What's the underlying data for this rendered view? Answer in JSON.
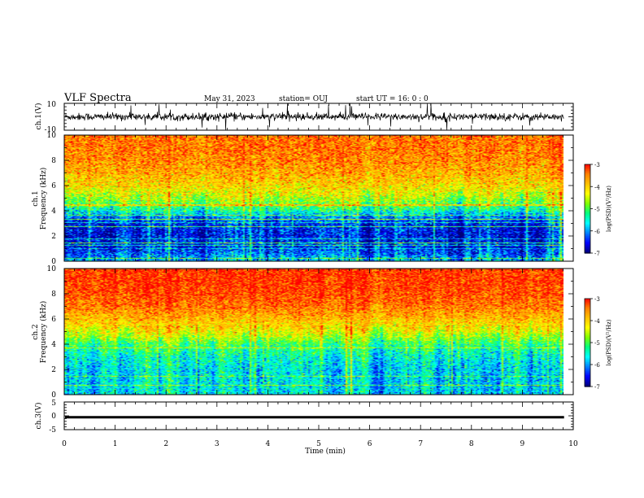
{
  "header": {
    "title": "VLF Spectra",
    "date": "May 31, 2023",
    "station": "station= OUJ",
    "start": "start  UT =   16: 0  : 0"
  },
  "chart_data": [
    {
      "type": "line",
      "panel": "ch1-waveform",
      "ylabel": "ch.1(V)",
      "ylim": [
        -10,
        10
      ],
      "yticks": [
        "10",
        "-10"
      ],
      "xlim": [
        0,
        10
      ],
      "baseline": 0,
      "color": "#000000"
    },
    {
      "type": "heatmap",
      "panel": "ch1-spectrogram",
      "ylabel": [
        "ch.1",
        "Frequency (kHz)"
      ],
      "ylim": [
        0,
        10
      ],
      "yticks": [
        "0",
        "2",
        "4",
        "6",
        "8",
        "10"
      ],
      "xlim": [
        0,
        9.82
      ],
      "colorbar": {
        "label": "log(PSD)(V²/Hz)",
        "range": [
          -7,
          -3
        ],
        "ticks": [
          "-3",
          "-4",
          "-5",
          "-6",
          "-7"
        ]
      },
      "profile_freq_khz": [
        0,
        1,
        2,
        3,
        3.6,
        4,
        4.6,
        5.2,
        6,
        7,
        8,
        9,
        10
      ],
      "profile_log_psd": [
        -5.9,
        -6.5,
        -6.6,
        -6.5,
        -6.0,
        -5.4,
        -4.9,
        -4.5,
        -4.1,
        -3.8,
        -3.6,
        -3.5,
        -3.5
      ]
    },
    {
      "type": "heatmap",
      "panel": "ch2-spectrogram",
      "ylabel": [
        "ch.2",
        "Frequency (kHz)"
      ],
      "ylim": [
        0,
        10
      ],
      "yticks": [
        "0",
        "2",
        "4",
        "6",
        "8",
        "10"
      ],
      "xlim": [
        0,
        9.82
      ],
      "colorbar": {
        "label": "log(PSD)(V²/Hz)",
        "range": [
          -7,
          -3
        ],
        "ticks": [
          "-3",
          "-4",
          "-5",
          "-6",
          "-7"
        ]
      },
      "profile_freq_khz": [
        0,
        1,
        2,
        3,
        4,
        4.6,
        5.2,
        6,
        7,
        8,
        9,
        10
      ],
      "profile_log_psd": [
        -5.8,
        -5.8,
        -5.8,
        -5.6,
        -5.2,
        -4.7,
        -4.3,
        -3.9,
        -3.5,
        -3.3,
        -3.2,
        -3.2
      ]
    },
    {
      "type": "line",
      "panel": "ch3-waveform",
      "ylabel": "ch.3(V)",
      "ylim": [
        -5,
        5
      ],
      "yticks": [
        "5",
        "0",
        "-5"
      ],
      "xlim": [
        0,
        10
      ],
      "baseline": -0.5,
      "color": "#000000"
    }
  ],
  "x_axis": {
    "label": "Time (min)",
    "ticks": [
      "0",
      "1",
      "2",
      "3",
      "4",
      "5",
      "6",
      "7",
      "8",
      "9",
      "10"
    ],
    "range": [
      0,
      10
    ]
  },
  "colormap": [
    "#00007a",
    "#0000ff",
    "#0080ff",
    "#00ffff",
    "#00ff80",
    "#80ff00",
    "#ffff00",
    "#ffc000",
    "#ff8000",
    "#ff0000"
  ]
}
